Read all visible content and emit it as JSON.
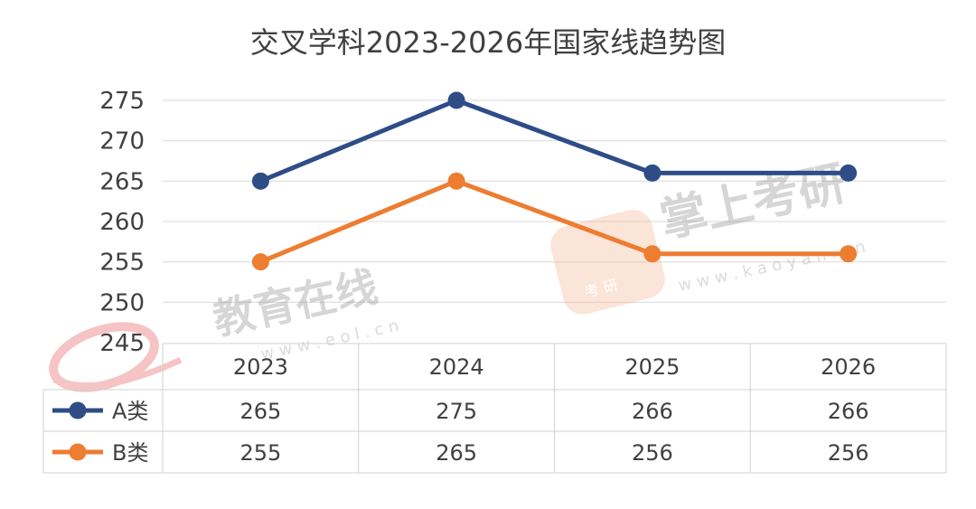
{
  "chart_data": {
    "type": "line",
    "title": "交叉学科2023-2026年国家线趋势图",
    "categories": [
      "2023",
      "2024",
      "2025",
      "2026"
    ],
    "series": [
      {
        "name": "A类",
        "values": [
          265,
          275,
          266,
          266
        ],
        "color": "#2e4d87"
      },
      {
        "name": "B类",
        "values": [
          255,
          265,
          256,
          256
        ],
        "color": "#ed7d31"
      }
    ],
    "yticks": [
      "275",
      "270",
      "265",
      "260",
      "255",
      "250",
      "245"
    ],
    "ylim": [
      245,
      275
    ],
    "grid": true,
    "legend": "data-table"
  },
  "watermarks": {
    "eol_name": "教育在线",
    "eol_url": "w w w . e o l . c n",
    "kaoyan_name": "掌上考研",
    "kaoyan_url": "w w w . k a o y a n . c n",
    "kaoyan_badge": "考 研"
  }
}
